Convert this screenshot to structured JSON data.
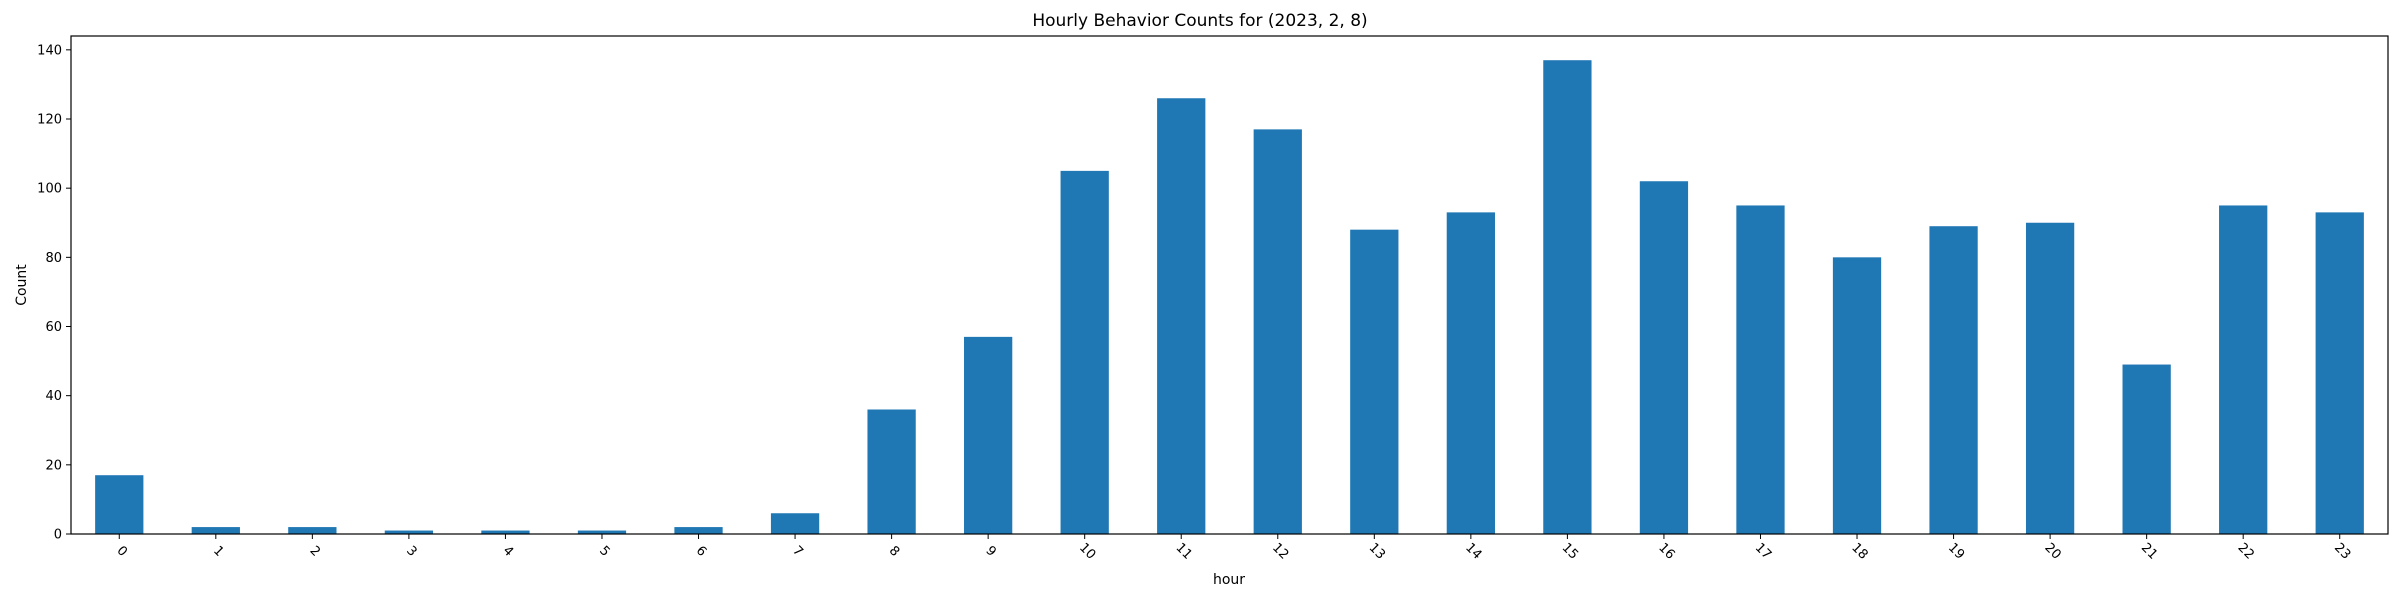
{
  "chart_data": {
    "type": "bar",
    "title": "Hourly Behavior Counts for (2023, 2, 8)",
    "xlabel": "hour",
    "ylabel": "Count",
    "categories": [
      "0",
      "1",
      "2",
      "3",
      "4",
      "5",
      "6",
      "7",
      "8",
      "9",
      "10",
      "11",
      "12",
      "13",
      "14",
      "15",
      "16",
      "17",
      "18",
      "19",
      "20",
      "21",
      "22",
      "23"
    ],
    "values": [
      17,
      2,
      2,
      1,
      1,
      1,
      2,
      6,
      36,
      57,
      105,
      126,
      117,
      88,
      93,
      137,
      102,
      95,
      80,
      89,
      90,
      49,
      95,
      93
    ],
    "ylim": [
      0,
      144
    ],
    "yticks": [
      0,
      20,
      40,
      60,
      80,
      100,
      120,
      140
    ],
    "grid": false,
    "bar_color": "#1f77b4"
  }
}
